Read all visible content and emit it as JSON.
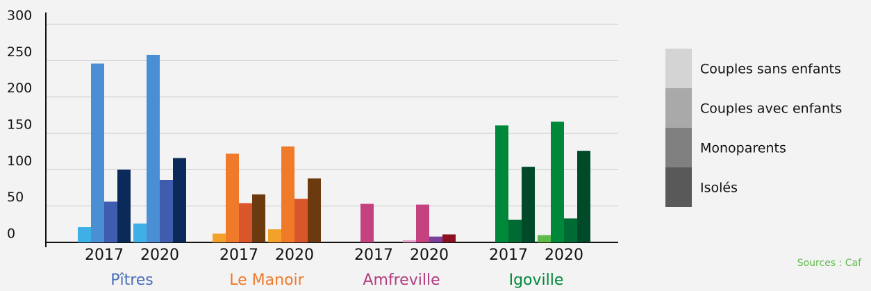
{
  "chart_data": {
    "type": "bar",
    "ylim": [
      0,
      300
    ],
    "yticks": [
      0,
      50,
      100,
      150,
      200,
      250,
      300
    ],
    "grid": true,
    "series": [
      {
        "name": "Couples sans enfants",
        "color": "#d4d4d4"
      },
      {
        "name": "Couples avec enfants",
        "color": "#a9a9a9"
      },
      {
        "name": "Monoparents",
        "color": "#808080"
      },
      {
        "name": "Isolés",
        "color": "#595959"
      }
    ],
    "groups": [
      {
        "name": "Pîtres",
        "label_color": "#4a6fb8",
        "colors": [
          "#3fb0e6",
          "#4a8fd4",
          "#3f5caf",
          "#0b2a5a"
        ],
        "years": [
          {
            "label": "2017",
            "values": [
              21,
              246,
              56,
              100
            ]
          },
          {
            "label": "2020",
            "values": [
              26,
              258,
              86,
              116
            ]
          }
        ]
      },
      {
        "name": "Le Manoir",
        "label_color": "#ee7a2a",
        "colors": [
          "#f2a22a",
          "#ee7a2a",
          "#d9562a",
          "#6b3a0e"
        ],
        "years": [
          {
            "label": "2017",
            "values": [
              12,
              122,
              54,
              66
            ]
          },
          {
            "label": "2020",
            "values": [
              18,
              132,
              60,
              88
            ]
          }
        ]
      },
      {
        "name": "Amfreville",
        "label_color": "#b03c7f",
        "colors": [
          "#e8a0c8",
          "#c4427f",
          "#7b3f9a",
          "#8b1020"
        ],
        "years": [
          {
            "label": "2017",
            "values": [
              0,
              53,
              0,
              0
            ]
          },
          {
            "label": "2020",
            "values": [
              3,
              52,
              8,
              11
            ]
          }
        ]
      },
      {
        "name": "Igoville",
        "label_color": "#00883a",
        "colors": [
          "#5dbb4a",
          "#00883a",
          "#006a35",
          "#004a2a"
        ],
        "years": [
          {
            "label": "2017",
            "values": [
              0,
              161,
              31,
              104
            ]
          },
          {
            "label": "2020",
            "values": [
              10,
              166,
              33,
              126
            ]
          }
        ]
      }
    ],
    "source": "Sources : Caf",
    "source_color": "#5dbb4a"
  }
}
